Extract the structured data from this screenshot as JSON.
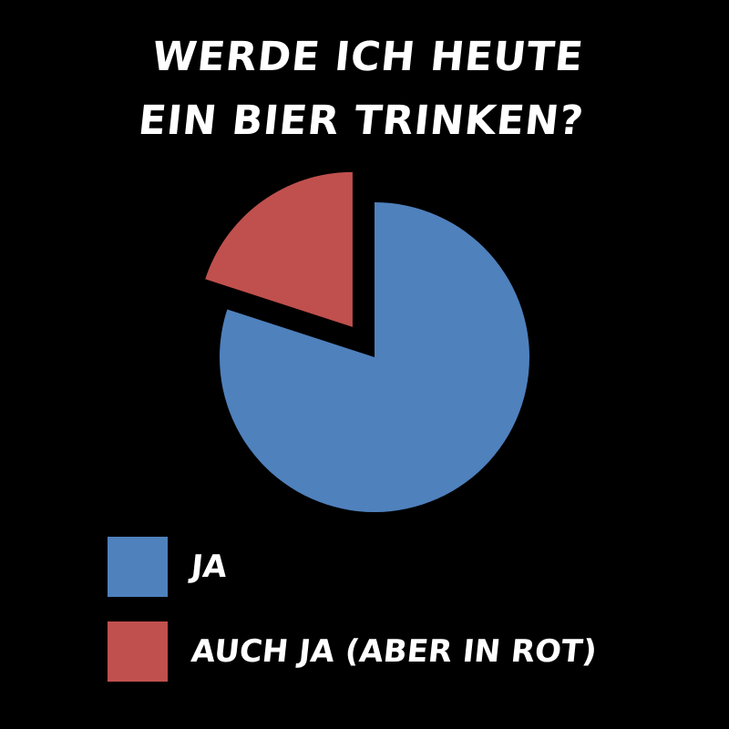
{
  "chart_data": {
    "type": "pie",
    "title_lines": [
      "WERDE ICH HEUTE",
      "EIN BIER TRINKEN?"
    ],
    "slices": [
      {
        "name": "JA",
        "value": 80,
        "color": "#4f81bd",
        "exploded": false
      },
      {
        "name": "AUCH JA (ABER IN ROT)",
        "value": 20,
        "color": "#c0504d",
        "exploded": true
      }
    ],
    "legend_placement": "bottom-left",
    "background": "#000000"
  }
}
